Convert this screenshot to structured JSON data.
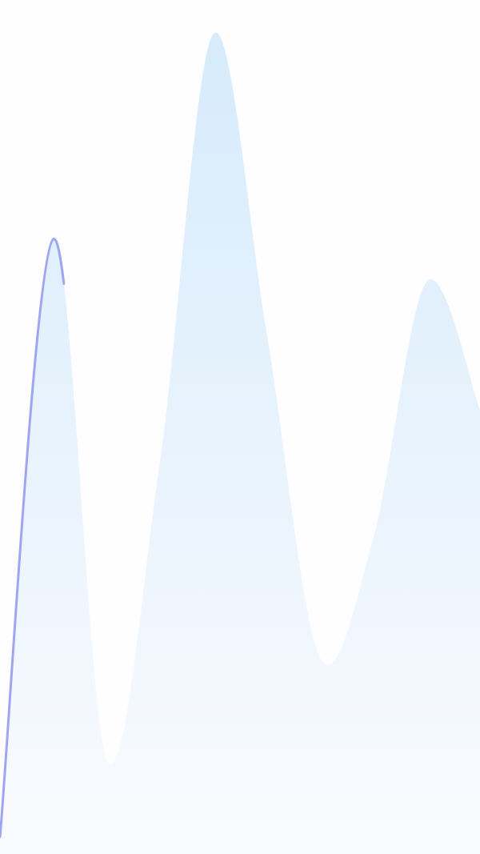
{
  "chart_data": {
    "type": "area",
    "values": [
      2,
      72,
      11,
      46,
      96,
      61,
      23,
      37,
      67,
      52
    ],
    "ylim": [
      0,
      100
    ],
    "color": "#d6ebfb",
    "line_color": "#9fa5f0"
  }
}
